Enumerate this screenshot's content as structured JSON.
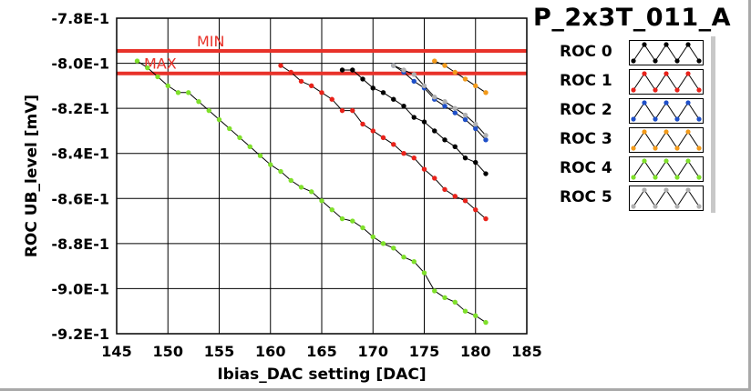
{
  "title": "P_2x3T_011_A",
  "chart_data": {
    "type": "line",
    "xlabel": "Ibias_DAC setting [DAC]",
    "ylabel": "ROC UB_level [mV]",
    "xlim": [
      145,
      185
    ],
    "ylim": [
      -0.92,
      -0.78
    ],
    "x_ticks": [
      145,
      150,
      155,
      160,
      165,
      170,
      175,
      180,
      185
    ],
    "y_ticks": [
      -0.78,
      -0.8,
      -0.82,
      -0.84,
      -0.86,
      -0.88,
      -0.9,
      -0.92
    ],
    "x_tick_labels": [
      "145",
      "150",
      "155",
      "160",
      "165",
      "170",
      "175",
      "180",
      "185"
    ],
    "y_tick_labels": [
      "-7.8E-1",
      "-8.0E-1",
      "-8.2E-1",
      "-8.4E-1",
      "-8.6E-1",
      "-8.8E-1",
      "-9.0E-1",
      "-9.2E-1"
    ],
    "grid": true,
    "legend_position": "right",
    "reference_lines": [
      {
        "label": "MIN",
        "y": -0.7945,
        "color": "#e8322a"
      },
      {
        "label": "MAX",
        "y": -0.8045,
        "color": "#e8322a"
      }
    ],
    "series": [
      {
        "name": "ROC 0",
        "color": "#000000",
        "points": [
          [
            167,
            -0.803
          ],
          [
            168,
            -0.803
          ],
          [
            169,
            -0.807
          ],
          [
            170,
            -0.811
          ],
          [
            171,
            -0.813
          ],
          [
            172,
            -0.816
          ],
          [
            173,
            -0.819
          ],
          [
            174,
            -0.824
          ],
          [
            175,
            -0.826
          ],
          [
            176,
            -0.83
          ],
          [
            177,
            -0.834
          ],
          [
            178,
            -0.837
          ],
          [
            179,
            -0.842
          ],
          [
            180,
            -0.844
          ],
          [
            181,
            -0.849
          ]
        ]
      },
      {
        "name": "ROC 1",
        "color": "#e8221a",
        "points": [
          [
            161,
            -0.801
          ],
          [
            162,
            -0.804
          ],
          [
            163,
            -0.808
          ],
          [
            164,
            -0.81
          ],
          [
            165,
            -0.813
          ],
          [
            166,
            -0.816
          ],
          [
            167,
            -0.821
          ],
          [
            168,
            -0.821
          ],
          [
            169,
            -0.827
          ],
          [
            170,
            -0.83
          ],
          [
            171,
            -0.833
          ],
          [
            172,
            -0.836
          ],
          [
            173,
            -0.84
          ],
          [
            174,
            -0.842
          ],
          [
            175,
            -0.847
          ],
          [
            176,
            -0.851
          ],
          [
            177,
            -0.856
          ],
          [
            178,
            -0.859
          ],
          [
            179,
            -0.861
          ],
          [
            180,
            -0.865
          ],
          [
            181,
            -0.869
          ]
        ]
      },
      {
        "name": "ROC 2",
        "color": "#1e4fc8",
        "points": [
          [
            172,
            -0.801
          ],
          [
            173,
            -0.804
          ],
          [
            174,
            -0.808
          ],
          [
            175,
            -0.811
          ],
          [
            176,
            -0.816
          ],
          [
            177,
            -0.819
          ],
          [
            178,
            -0.822
          ],
          [
            179,
            -0.825
          ],
          [
            180,
            -0.829
          ],
          [
            181,
            -0.834
          ]
        ]
      },
      {
        "name": "ROC 3",
        "color": "#f29a1a",
        "points": [
          [
            176,
            -0.799
          ],
          [
            177,
            -0.801
          ],
          [
            178,
            -0.804
          ],
          [
            179,
            -0.807
          ],
          [
            180,
            -0.81
          ],
          [
            181,
            -0.813
          ]
        ]
      },
      {
        "name": "ROC 4",
        "color": "#7fe02a",
        "points": [
          [
            147,
            -0.799
          ],
          [
            148,
            -0.802
          ],
          [
            149,
            -0.806
          ],
          [
            150,
            -0.81
          ],
          [
            151,
            -0.813
          ],
          [
            152,
            -0.813
          ],
          [
            153,
            -0.817
          ],
          [
            154,
            -0.821
          ],
          [
            155,
            -0.825
          ],
          [
            156,
            -0.829
          ],
          [
            157,
            -0.833
          ],
          [
            158,
            -0.837
          ],
          [
            159,
            -0.841
          ],
          [
            160,
            -0.845
          ],
          [
            161,
            -0.848
          ],
          [
            162,
            -0.852
          ],
          [
            163,
            -0.855
          ],
          [
            164,
            -0.857
          ],
          [
            165,
            -0.861
          ],
          [
            166,
            -0.865
          ],
          [
            167,
            -0.869
          ],
          [
            168,
            -0.87
          ],
          [
            169,
            -0.873
          ],
          [
            170,
            -0.877
          ],
          [
            171,
            -0.88
          ],
          [
            172,
            -0.882
          ],
          [
            173,
            -0.886
          ],
          [
            174,
            -0.888
          ],
          [
            175,
            -0.893
          ],
          [
            176,
            -0.901
          ],
          [
            177,
            -0.904
          ],
          [
            178,
            -0.906
          ],
          [
            179,
            -0.91
          ],
          [
            180,
            -0.912
          ],
          [
            181,
            -0.915
          ]
        ]
      },
      {
        "name": "ROC 5",
        "color": "#b0b0b0",
        "points": [
          [
            172,
            -0.801
          ],
          [
            173,
            -0.803
          ],
          [
            174,
            -0.805
          ],
          [
            175,
            -0.81
          ],
          [
            176,
            -0.815
          ],
          [
            177,
            -0.817
          ],
          [
            178,
            -0.82
          ],
          [
            179,
            -0.823
          ],
          [
            180,
            -0.827
          ],
          [
            181,
            -0.832
          ]
        ]
      }
    ]
  },
  "legend_items": [
    {
      "label": "ROC 0",
      "color": "#000000"
    },
    {
      "label": "ROC 1",
      "color": "#e8221a"
    },
    {
      "label": "ROC 2",
      "color": "#1e4fc8"
    },
    {
      "label": "ROC 3",
      "color": "#f29a1a"
    },
    {
      "label": "ROC 4",
      "color": "#7fe02a"
    },
    {
      "label": "ROC 5",
      "color": "#b0b0b0"
    }
  ]
}
